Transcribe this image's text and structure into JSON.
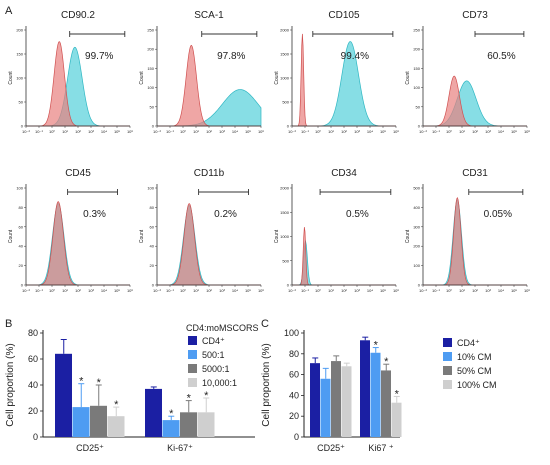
{
  "panel_labels": {
    "a": "A",
    "b": "B",
    "c": "C"
  },
  "flow": {
    "x_ticks": [
      "10⁻²",
      "10⁻¹",
      "10⁰",
      "10¹",
      "10²",
      "10³",
      "10⁴",
      "10⁵",
      "10⁶"
    ],
    "y_label": "Count",
    "colors": {
      "control": "#e8807f",
      "marker": "#5fd3dc",
      "overlap": "#9aa8b8"
    },
    "panels": [
      {
        "title": "CD90.2",
        "pct": "99.7%",
        "ymax": "200",
        "yticks": [
          "0",
          "50",
          "100",
          "150",
          "200"
        ]
      },
      {
        "title": "SCA-1",
        "pct": "97.8%",
        "ymax": "250",
        "yticks": [
          "0",
          "50",
          "100",
          "150",
          "200",
          "250"
        ]
      },
      {
        "title": "CD105",
        "pct": "99.4%",
        "ymax": "2000",
        "yticks": [
          "0",
          "500",
          "1000",
          "1500",
          "2000"
        ]
      },
      {
        "title": "CD73",
        "pct": "60.5%",
        "ymax": "250",
        "yticks": [
          "0",
          "50",
          "100",
          "150",
          "200",
          "250"
        ]
      },
      {
        "title": "CD45",
        "pct": "0.3%",
        "ymax": "100",
        "yticks": [
          "0",
          "20",
          "40",
          "60",
          "80",
          "100"
        ]
      },
      {
        "title": "CD11b",
        "pct": "0.2%",
        "ymax": "100",
        "yticks": [
          "0",
          "20",
          "40",
          "60",
          "80",
          "100"
        ]
      },
      {
        "title": "CD34",
        "pct": "0.5%",
        "ymax": "2000",
        "yticks": [
          "0",
          "500",
          "1000",
          "1500",
          "2000"
        ]
      },
      {
        "title": "CD31",
        "pct": "0.05%",
        "ymax": "500",
        "yticks": [
          "0",
          "100",
          "200",
          "300",
          "400",
          "500"
        ]
      }
    ]
  },
  "chart_data": [
    {
      "type": "bar",
      "panel": "B",
      "ylabel": "Cell proportion (%)",
      "ylim": [
        0,
        80
      ],
      "yticks": [
        0,
        20,
        40,
        60,
        80
      ],
      "categories": [
        "CD25⁺",
        "Ki-67⁺"
      ],
      "legend_title": "CD4:moMSCORS",
      "series": [
        {
          "name": "CD4⁺",
          "color": "#1b1fa3",
          "values": [
            64,
            37
          ],
          "errors": [
            11,
            1.5
          ],
          "significance": [
            "",
            ""
          ]
        },
        {
          "name": "500:1",
          "color": "#4e9cf2",
          "values": [
            23,
            13
          ],
          "errors": [
            18,
            3
          ],
          "significance": [
            "*",
            "*"
          ]
        },
        {
          "name": "5000:1",
          "color": "#7a7a7a",
          "values": [
            24,
            19
          ],
          "errors": [
            16,
            9
          ],
          "significance": [
            "*",
            "*"
          ]
        },
        {
          "name": "10,000:1",
          "color": "#cfcfcf",
          "values": [
            16,
            19
          ],
          "errors": [
            7,
            11
          ],
          "significance": [
            "*",
            "*"
          ]
        }
      ]
    },
    {
      "type": "bar",
      "panel": "C",
      "ylabel": "Cell proportion (%)",
      "ylim": [
        0,
        100
      ],
      "yticks": [
        0,
        20,
        40,
        60,
        80,
        100
      ],
      "categories": [
        "CD25⁺",
        "Ki67 ⁺"
      ],
      "series": [
        {
          "name": "CD4⁺",
          "color": "#1b1fa3",
          "values": [
            71,
            93
          ],
          "errors": [
            5,
            3
          ],
          "significance": [
            "",
            ""
          ]
        },
        {
          "name": "10% CM",
          "color": "#4e9cf2",
          "values": [
            56,
            81
          ],
          "errors": [
            10,
            5
          ],
          "significance": [
            "",
            "*"
          ]
        },
        {
          "name": "50% CM",
          "color": "#7a7a7a",
          "values": [
            73,
            64
          ],
          "errors": [
            5,
            6
          ],
          "significance": [
            "",
            "*"
          ]
        },
        {
          "name": "100% CM",
          "color": "#cfcfcf",
          "values": [
            68,
            33
          ],
          "errors": [
            3,
            6
          ],
          "significance": [
            "",
            "*"
          ]
        }
      ]
    }
  ]
}
